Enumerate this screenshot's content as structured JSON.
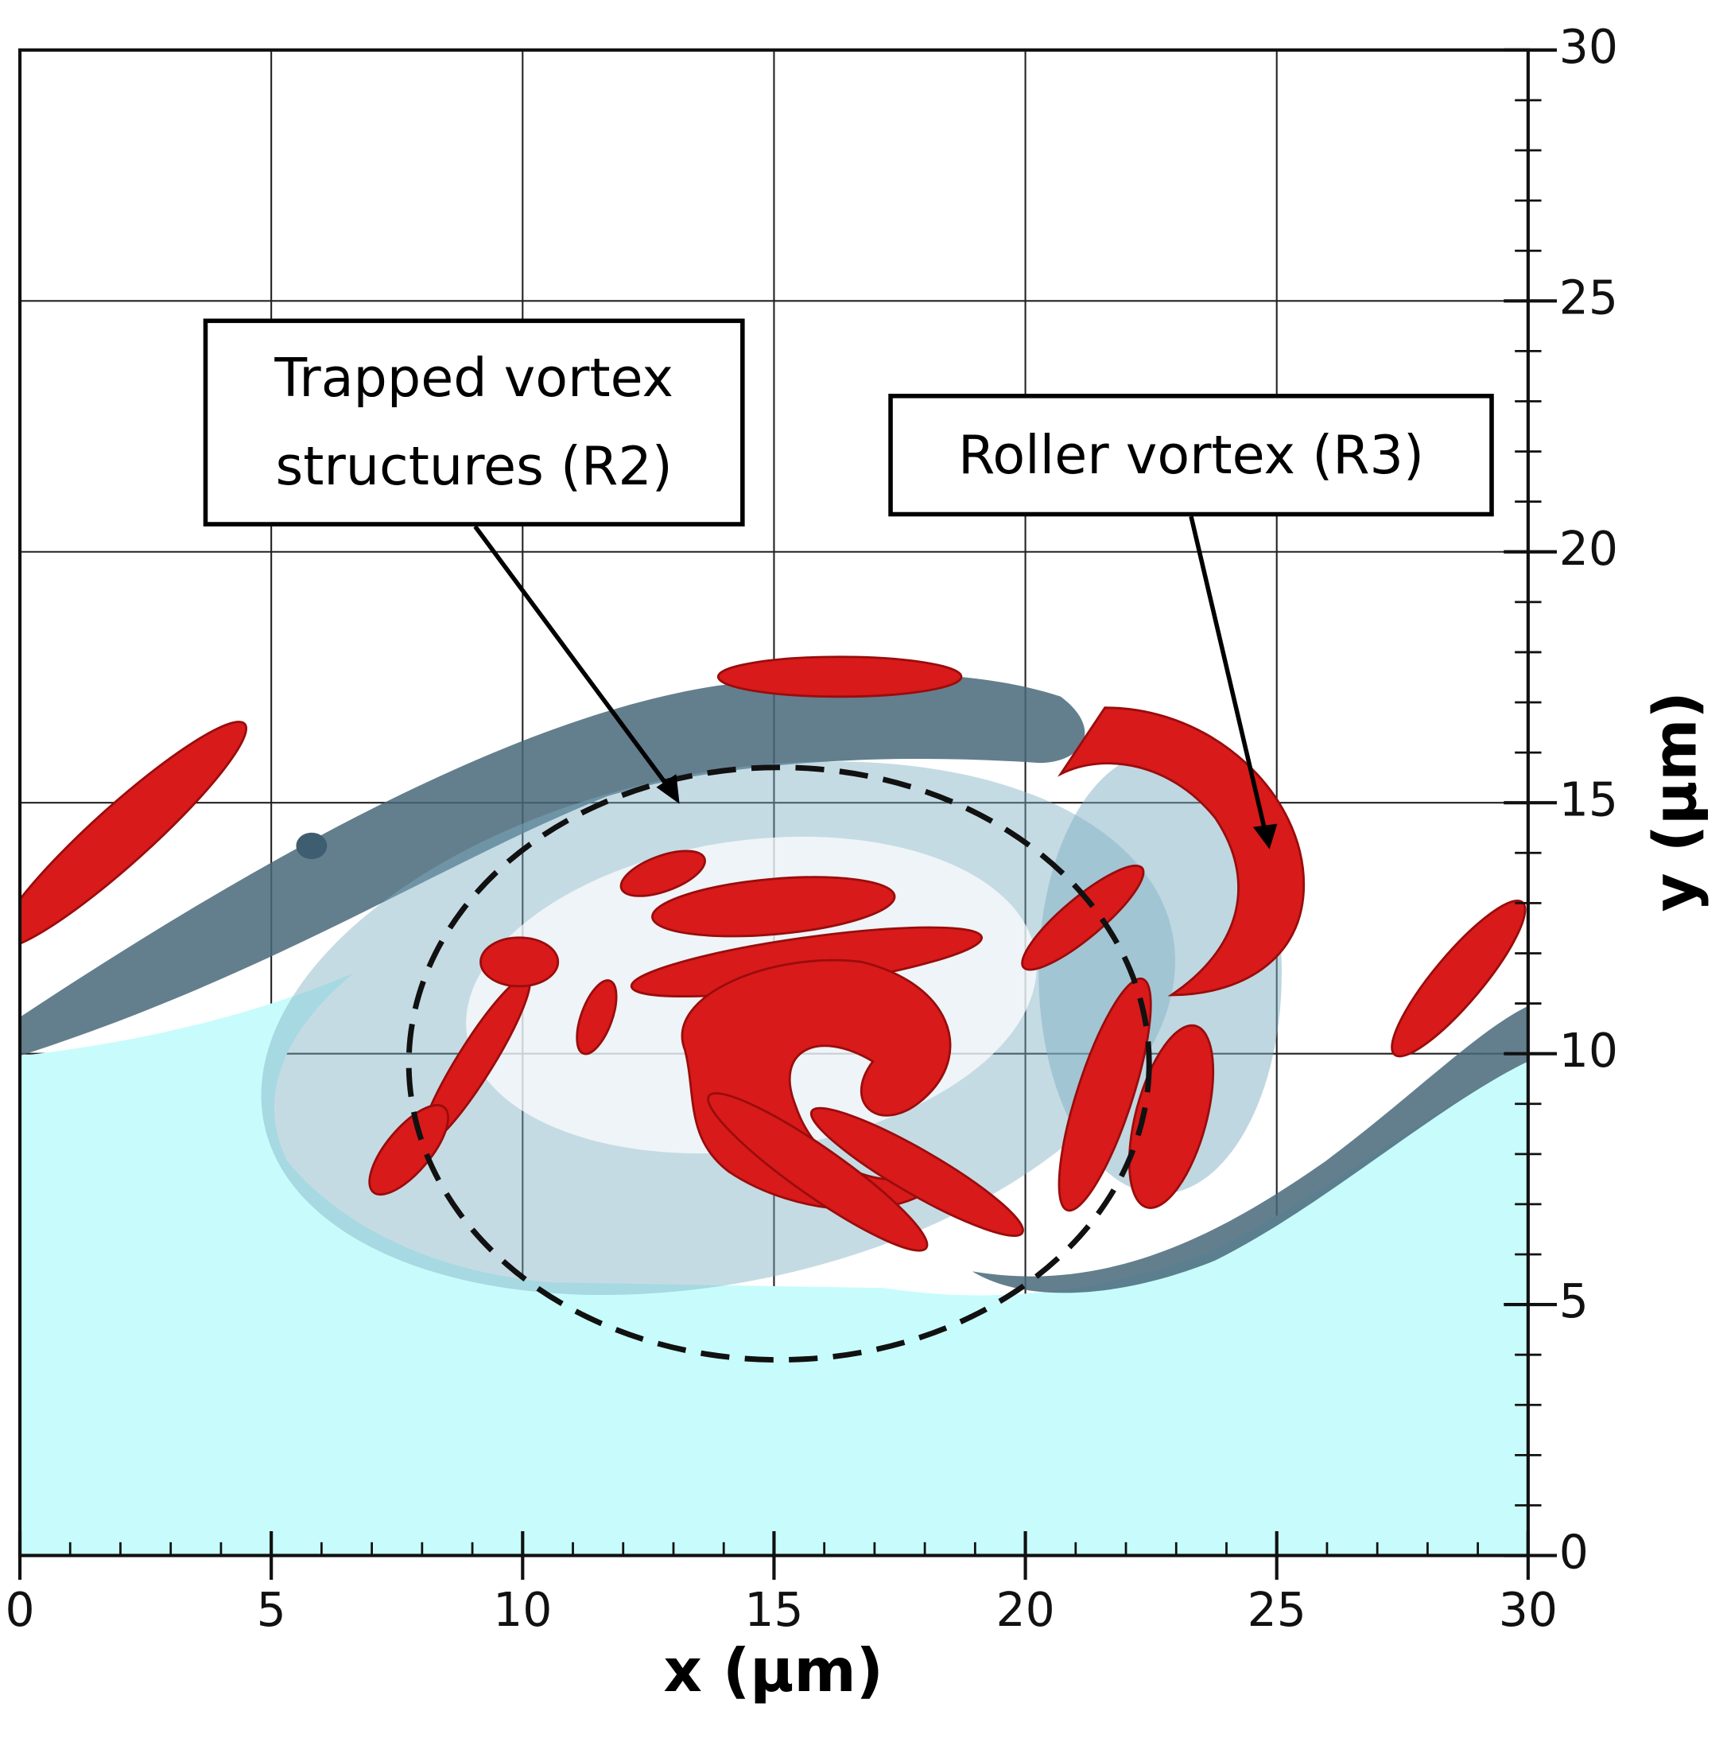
{
  "chart_data": {
    "type": "isosurface",
    "xlabel": "x (μm)",
    "ylabel": "y (μm)",
    "xlim": [
      0,
      30
    ],
    "ylim": [
      0,
      30
    ],
    "xticks": [
      0,
      5,
      10,
      15,
      20,
      25,
      30
    ],
    "yticks": [
      0,
      5,
      10,
      15,
      20,
      25,
      30
    ],
    "xminorticks": [
      1,
      2,
      3,
      4,
      6,
      7,
      8,
      9,
      11,
      12,
      13,
      14,
      16,
      17,
      18,
      19,
      21,
      22,
      23,
      24,
      26,
      27,
      28,
      29
    ],
    "yminorticks": [
      1,
      2,
      3,
      4,
      6,
      7,
      8,
      9,
      11,
      12,
      13,
      14,
      16,
      17,
      18,
      19,
      21,
      22,
      23,
      24,
      26,
      27,
      28,
      29
    ],
    "grid": true,
    "annotations": [
      {
        "lines": [
          "Trapped vortex",
          "structures (R2)"
        ]
      },
      {
        "lines": [
          "Roller vortex (R3)"
        ]
      }
    ]
  }
}
